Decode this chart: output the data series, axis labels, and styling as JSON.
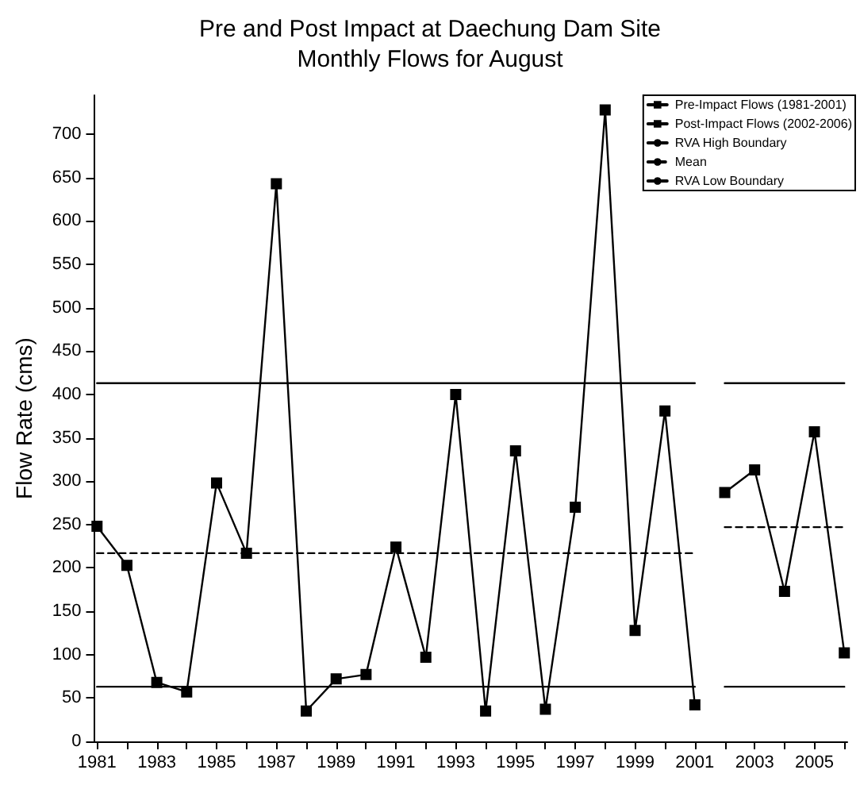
{
  "chart_data": {
    "type": "line",
    "title": "Pre and Post Impact at Daechung Dam Site",
    "subtitle": "Monthly Flows for August",
    "ylabel": "Flow Rate (cms)",
    "xlim": [
      1980.9,
      2006.1
    ],
    "xticks": [
      1981,
      {
        "value": 1982,
        "label": null
      },
      1983,
      {
        "value": 1984,
        "label": null
      },
      1985,
      {
        "value": 1986,
        "label": null
      },
      1987,
      {
        "value": 1988,
        "label": null
      },
      1989,
      {
        "value": 1990,
        "label": null
      },
      1991,
      {
        "value": 1992,
        "label": null
      },
      1993,
      {
        "value": 1994,
        "label": null
      },
      1995,
      {
        "value": 1996,
        "label": null
      },
      1997,
      {
        "value": 1998,
        "label": null
      },
      1999,
      {
        "value": 2000,
        "label": null
      },
      2001,
      {
        "value": 2002,
        "label": null
      },
      2003,
      {
        "value": 2004,
        "label": null
      },
      2005,
      {
        "value": 2006,
        "label": null
      }
    ],
    "ylim": [
      0,
      745
    ],
    "yticks": [
      0,
      50,
      100,
      150,
      200,
      250,
      300,
      350,
      400,
      450,
      500,
      550,
      600,
      650,
      700
    ],
    "grid": false,
    "legend": "top right",
    "series": [
      {
        "name": "Pre-Impact Flows (1981-2001)",
        "color": "#000000",
        "marker": "square",
        "line_style": "solid",
        "x": [
          1981,
          1982,
          1983,
          1984,
          1985,
          1986,
          1987,
          1988,
          1989,
          1990,
          1991,
          1992,
          1993,
          1994,
          1995,
          1996,
          1997,
          1998,
          1999,
          2000,
          2001
        ],
        "values": [
          248,
          203,
          68,
          57,
          298,
          217,
          643,
          35,
          72,
          77,
          224,
          97,
          400,
          35,
          335,
          37,
          270,
          728,
          128,
          381,
          42
        ]
      },
      {
        "name": "Post-Impact Flows (2002-2006)",
        "color": "#000000",
        "marker": "square",
        "line_style": "solid",
        "x": [
          2002,
          2003,
          2004,
          2005,
          2006
        ],
        "values": [
          287,
          313,
          173,
          357,
          102
        ]
      },
      {
        "name": "RVA High Boundary",
        "color": "#000000",
        "marker": "none",
        "line_style": "solid",
        "x": [
          1981,
          2001,
          2001.5,
          2002,
          2006
        ],
        "values": [
          413,
          413,
          null,
          413,
          413
        ]
      },
      {
        "name": "Mean",
        "color": "#000000",
        "marker": "none",
        "line_style": "dashed",
        "x": [
          1981,
          2001,
          2001.5,
          2002,
          2006
        ],
        "values": [
          217,
          217,
          null,
          247,
          247
        ]
      },
      {
        "name": "RVA Low Boundary",
        "color": "#000000",
        "marker": "none",
        "line_style": "solid",
        "x": [
          1981,
          2001,
          2001.5,
          2002,
          2006
        ],
        "values": [
          63,
          63,
          null,
          63,
          63
        ]
      }
    ]
  }
}
